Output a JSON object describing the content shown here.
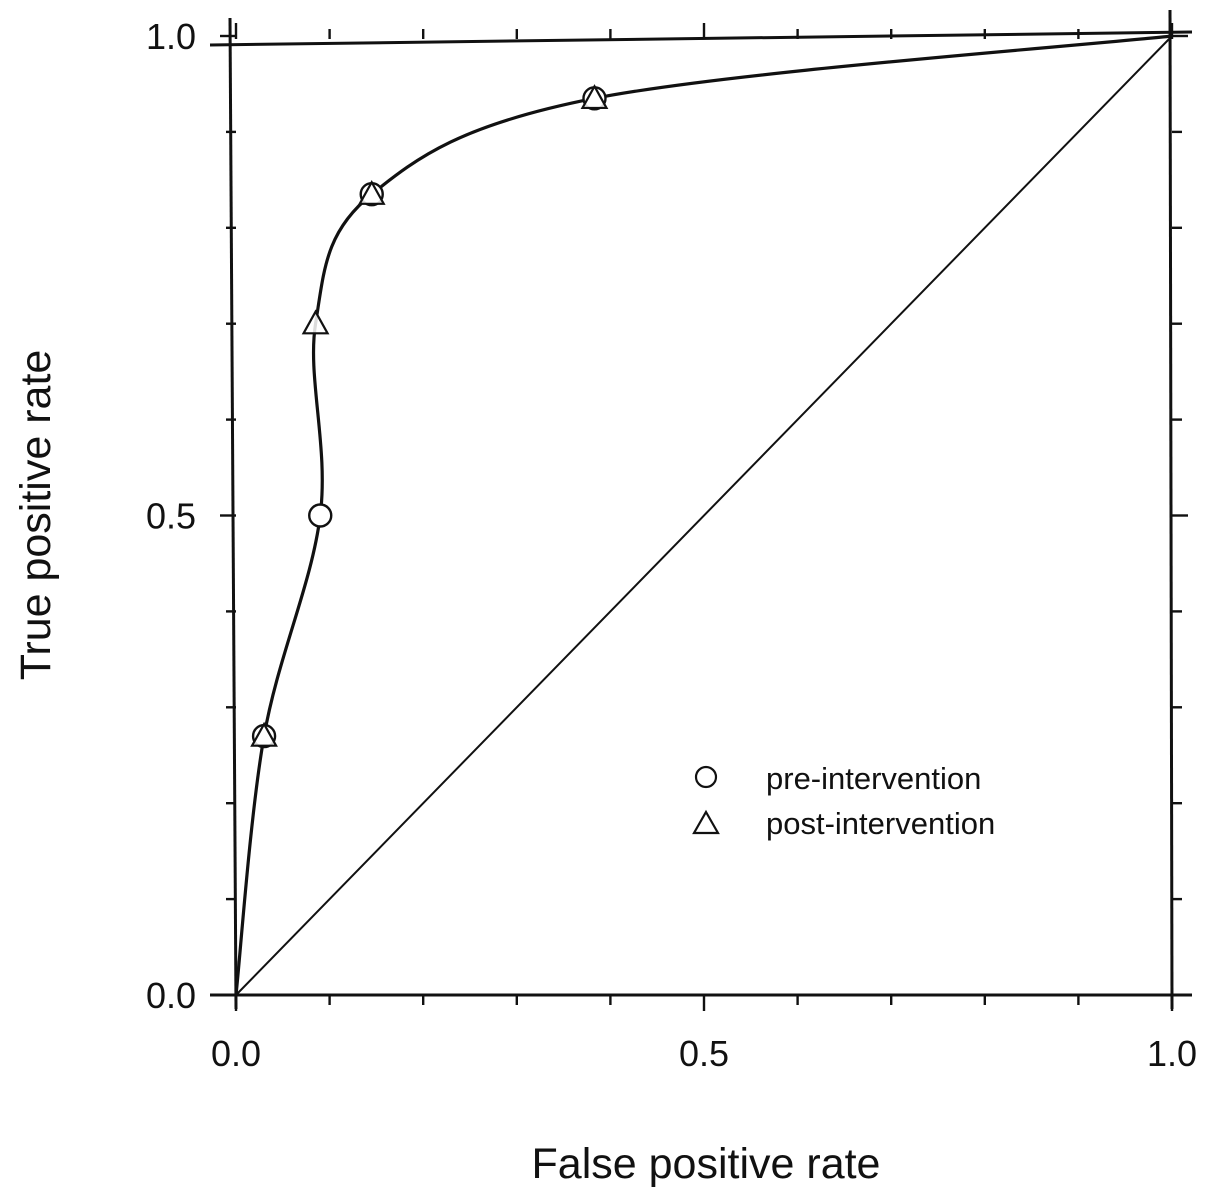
{
  "chart_data": {
    "type": "scatter",
    "title": "",
    "xlabel": "False positive rate",
    "ylabel": "True positive rate",
    "xlim": [
      0,
      1
    ],
    "ylim": [
      0,
      1
    ],
    "x_major_ticks": [
      0.0,
      0.5,
      1.0
    ],
    "y_major_ticks": [
      0.0,
      0.5,
      1.0
    ],
    "x_tick_labels": [
      "0.0",
      "0.5",
      "1.0"
    ],
    "y_tick_labels": [
      "0.0",
      "0.5",
      "1.0"
    ],
    "minor_tick_step": 0.1,
    "grid": false,
    "legend_position": "lower-right",
    "series": [
      {
        "name": "pre-intervention",
        "marker": "circle",
        "x": [
          0.03,
          0.09,
          0.145,
          0.383
        ],
        "y": [
          0.27,
          0.5,
          0.835,
          0.935
        ]
      },
      {
        "name": "post-intervention",
        "marker": "triangle",
        "x": [
          0.03,
          0.085,
          0.145,
          0.383
        ],
        "y": [
          0.27,
          0.7,
          0.835,
          0.935
        ]
      }
    ],
    "fitted_curve": {
      "x": [
        0.0,
        0.03,
        0.09,
        0.085,
        0.145,
        0.383,
        1.0
      ],
      "y": [
        0.0,
        0.27,
        0.5,
        0.7,
        0.835,
        0.935,
        1.0
      ]
    },
    "reference_line": {
      "x": [
        0,
        1
      ],
      "y": [
        0,
        1
      ]
    }
  }
}
